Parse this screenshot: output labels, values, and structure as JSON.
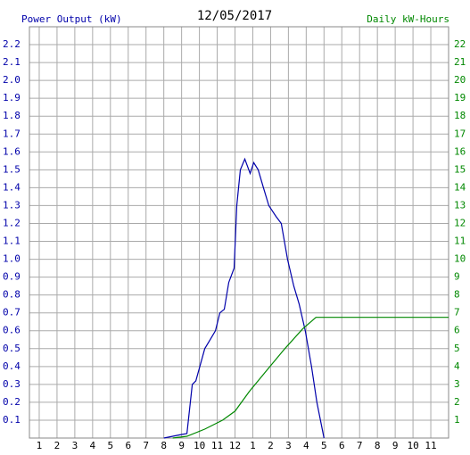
{
  "chart_data": {
    "type": "line",
    "title": "12/05/2017",
    "ylabel": "Power Output (kW)",
    "y2label": "Daily kW-Hours",
    "xlim": [
      0.45,
      24
    ],
    "ylim": [
      0,
      2.3
    ],
    "y2lim": [
      0,
      23
    ],
    "grid": true,
    "xticks": [
      1,
      2,
      3,
      4,
      5,
      6,
      7,
      8,
      9,
      10,
      11,
      12,
      {
        "value": 13,
        "label": "1"
      },
      {
        "value": 14,
        "label": "2"
      },
      {
        "value": 15,
        "label": "3"
      },
      {
        "value": 16,
        "label": "4"
      },
      {
        "value": 17,
        "label": "5"
      },
      {
        "value": 18,
        "label": "6"
      },
      {
        "value": 19,
        "label": "7"
      },
      {
        "value": 20,
        "label": "8"
      },
      {
        "value": 21,
        "label": "9"
      },
      {
        "value": 22,
        "label": "10"
      },
      {
        "value": 23,
        "label": "11"
      }
    ],
    "yticks": [
      0.1,
      0.2,
      0.3,
      0.4,
      0.5,
      0.6,
      0.7,
      0.8,
      0.9,
      {
        "value": 1,
        "label": "1.0"
      },
      1.1,
      1.2,
      1.3,
      1.4,
      1.5,
      1.6,
      1.7,
      1.8,
      1.9,
      {
        "value": 2,
        "label": "2.0"
      },
      2.1,
      2.2
    ],
    "y2ticks": [
      1,
      2,
      3,
      4,
      5,
      6,
      7,
      8,
      9,
      10,
      11,
      12,
      13,
      14,
      15,
      16,
      17,
      18,
      19,
      20,
      21,
      22
    ],
    "series": [
      {
        "color": "#0000aa",
        "x": [
          8,
          8.5,
          9,
          9.3,
          9.6,
          9.8,
          10.3,
          10.6,
          10.9,
          11.15,
          11.4,
          11.65,
          11.95,
          12.1,
          12.3,
          12.55,
          12.85,
          13.05,
          13.3,
          13.6,
          13.9,
          14.3,
          14.6,
          14.95,
          15.3,
          15.6,
          15.95,
          16.3,
          16.6,
          17
        ],
        "values": [
          0,
          0.01,
          0.02,
          0.025,
          0.3,
          0.32,
          0.5,
          0.55,
          0.6,
          0.7,
          0.72,
          0.87,
          0.95,
          1.3,
          1.5,
          1.56,
          1.48,
          1.54,
          1.5,
          1.4,
          1.3,
          1.24,
          1.2,
          1.0,
          0.85,
          0.75,
          0.6,
          0.4,
          0.2,
          0
        ]
      },
      {
        "color": "#008800",
        "axis": "y2",
        "x": [
          8.5,
          9.3,
          10.3,
          11.3,
          12,
          12.8,
          13.8,
          14.8,
          15.8,
          16.55,
          17.05,
          24
        ],
        "values": [
          0,
          0.1,
          0.5,
          1.0,
          1.5,
          2.6,
          3.8,
          5.0,
          6.1,
          6.75,
          6.75,
          6.75
        ]
      }
    ]
  }
}
